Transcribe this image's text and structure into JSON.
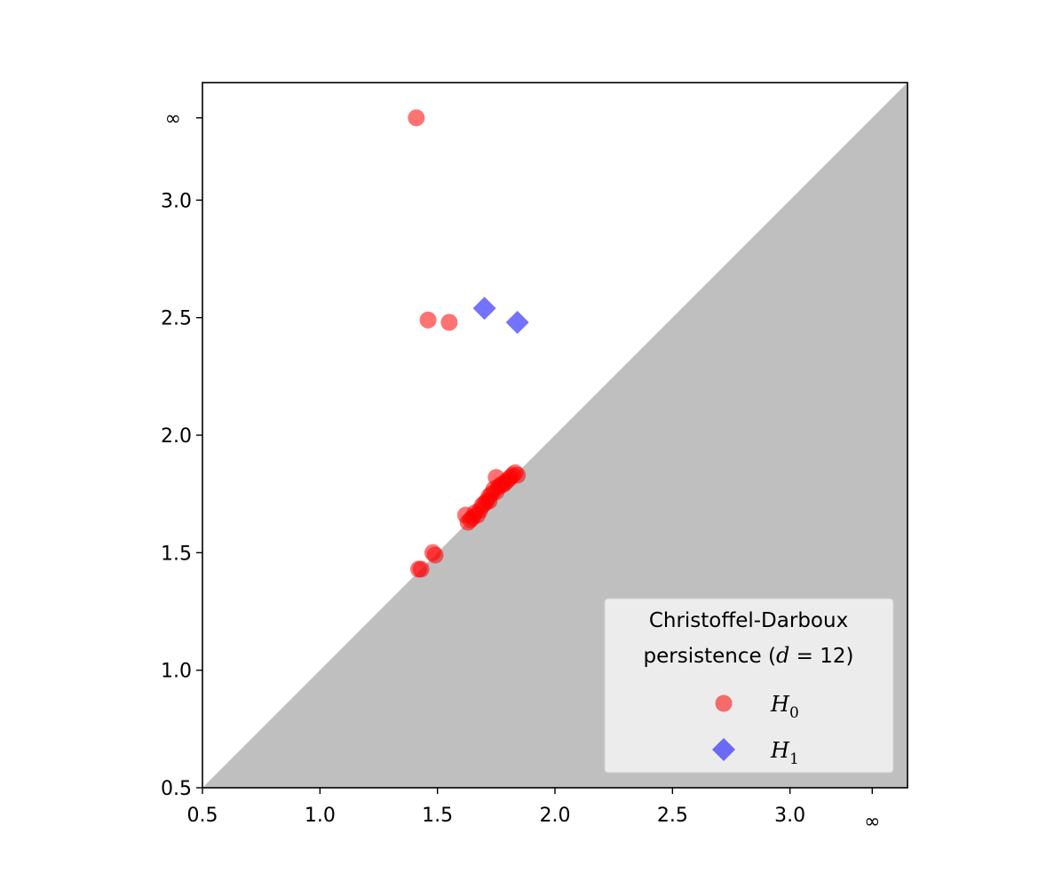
{
  "chart_data": {
    "type": "scatter",
    "title": "",
    "xlabel": "",
    "ylabel": "",
    "xlim": [
      0.5,
      3.5
    ],
    "ylim": [
      0.5,
      3.5
    ],
    "infinity_value": 3.35,
    "x_ticks": [
      {
        "value": 0.5,
        "label": "0.5"
      },
      {
        "value": 1.0,
        "label": "1.0"
      },
      {
        "value": 1.5,
        "label": "1.5"
      },
      {
        "value": 2.0,
        "label": "2.0"
      },
      {
        "value": 2.5,
        "label": "2.5"
      },
      {
        "value": 3.0,
        "label": "3.0"
      },
      {
        "value": 3.35,
        "label": "∞"
      }
    ],
    "y_ticks": [
      {
        "value": 0.5,
        "label": "0.5"
      },
      {
        "value": 1.0,
        "label": "1.0"
      },
      {
        "value": 1.5,
        "label": "1.5"
      },
      {
        "value": 2.0,
        "label": "2.0"
      },
      {
        "value": 2.5,
        "label": "2.5"
      },
      {
        "value": 3.0,
        "label": "3.0"
      },
      {
        "value": 3.35,
        "label": "∞"
      }
    ],
    "diagonal_shading": {
      "color": "#bfbfbf",
      "region": "below-diagonal"
    },
    "grid": false,
    "legend": {
      "title_line1": "Christoffel-Darboux",
      "title_line2_prefix": "persistence (",
      "title_line2_var": "d",
      "title_line2_suffix": " = 12)",
      "placement": "lower-right",
      "entries": [
        {
          "name": "H",
          "sub": "0",
          "series": 0
        },
        {
          "name": "H",
          "sub": "1",
          "series": 1
        }
      ]
    },
    "series": [
      {
        "name": "H0",
        "marker": "circle",
        "color": "#ff0000",
        "alpha": 0.55,
        "points": [
          [
            1.41,
            3.35
          ],
          [
            1.46,
            2.49
          ],
          [
            1.55,
            2.48
          ],
          [
            1.42,
            1.43
          ],
          [
            1.43,
            1.43
          ],
          [
            1.48,
            1.5
          ],
          [
            1.49,
            1.49
          ],
          [
            1.62,
            1.66
          ],
          [
            1.63,
            1.63
          ],
          [
            1.64,
            1.64
          ],
          [
            1.65,
            1.65
          ],
          [
            1.66,
            1.67
          ],
          [
            1.67,
            1.66
          ],
          [
            1.68,
            1.68
          ],
          [
            1.69,
            1.7
          ],
          [
            1.7,
            1.71
          ],
          [
            1.71,
            1.72
          ],
          [
            1.72,
            1.72
          ],
          [
            1.72,
            1.74
          ],
          [
            1.73,
            1.75
          ],
          [
            1.74,
            1.77
          ],
          [
            1.75,
            1.76
          ],
          [
            1.75,
            1.82
          ],
          [
            1.76,
            1.78
          ],
          [
            1.77,
            1.79
          ],
          [
            1.78,
            1.79
          ],
          [
            1.79,
            1.8
          ],
          [
            1.8,
            1.81
          ],
          [
            1.81,
            1.82
          ],
          [
            1.82,
            1.83
          ],
          [
            1.83,
            1.84
          ],
          [
            1.84,
            1.83
          ]
        ]
      },
      {
        "name": "H1",
        "marker": "diamond",
        "color": "#0000ff",
        "alpha": 0.55,
        "points": [
          [
            1.7,
            2.54
          ],
          [
            1.84,
            2.48
          ]
        ]
      }
    ]
  }
}
